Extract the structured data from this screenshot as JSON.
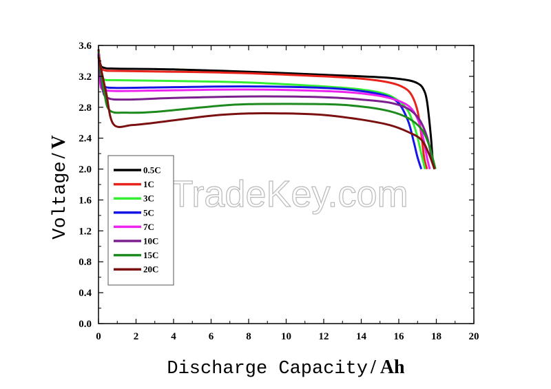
{
  "chart_data": {
    "type": "line",
    "xlabel": "Discharge Capacity",
    "xunit": "Ah",
    "ylabel": "Voltage",
    "yunit": "V",
    "xlim": [
      0,
      20
    ],
    "ylim": [
      0,
      3.6
    ],
    "xticks": [
      "0",
      "2",
      "4",
      "6",
      "8",
      "10",
      "12",
      "14",
      "16",
      "18",
      "20"
    ],
    "yticks": [
      "0.0",
      "0.4",
      "0.8",
      "1.2",
      "1.6",
      "2.0",
      "2.4",
      "2.8",
      "3.2",
      "3.6"
    ],
    "grid": false,
    "legend_position": "left",
    "watermark": "TradeKey.com",
    "series": [
      {
        "name": "0.5C",
        "color": "#000000",
        "points": [
          [
            0,
            3.55
          ],
          [
            0.1,
            3.36
          ],
          [
            0.3,
            3.31
          ],
          [
            1,
            3.3
          ],
          [
            4,
            3.29
          ],
          [
            8,
            3.26
          ],
          [
            12,
            3.22
          ],
          [
            14,
            3.2
          ],
          [
            15.5,
            3.18
          ],
          [
            16.5,
            3.15
          ],
          [
            17,
            3.11
          ],
          [
            17.3,
            3.04
          ],
          [
            17.5,
            2.88
          ],
          [
            17.7,
            2.45
          ],
          [
            17.8,
            2.15
          ],
          [
            17.9,
            2.0
          ]
        ]
      },
      {
        "name": "1C",
        "color": "#e8231b",
        "points": [
          [
            0,
            3.54
          ],
          [
            0.1,
            3.34
          ],
          [
            0.3,
            3.28
          ],
          [
            1,
            3.27
          ],
          [
            4,
            3.26
          ],
          [
            8,
            3.24
          ],
          [
            12,
            3.2
          ],
          [
            14,
            3.17
          ],
          [
            15.5,
            3.12
          ],
          [
            16.3,
            3.05
          ],
          [
            16.7,
            2.95
          ],
          [
            17,
            2.75
          ],
          [
            17.2,
            2.45
          ],
          [
            17.35,
            2.15
          ],
          [
            17.5,
            2.0
          ]
        ]
      },
      {
        "name": "3C",
        "color": "#33ee33",
        "points": [
          [
            0,
            3.52
          ],
          [
            0.1,
            3.25
          ],
          [
            0.3,
            3.16
          ],
          [
            1,
            3.15
          ],
          [
            4,
            3.14
          ],
          [
            8,
            3.12
          ],
          [
            12,
            3.07
          ],
          [
            14,
            3.03
          ],
          [
            15.3,
            2.97
          ],
          [
            16,
            2.88
          ],
          [
            16.5,
            2.75
          ],
          [
            16.9,
            2.5
          ],
          [
            17.2,
            2.2
          ],
          [
            17.4,
            2.0
          ]
        ]
      },
      {
        "name": "5C",
        "color": "#1515e6",
        "points": [
          [
            0,
            3.5
          ],
          [
            0.1,
            3.15
          ],
          [
            0.3,
            3.07
          ],
          [
            1,
            3.05
          ],
          [
            4,
            3.06
          ],
          [
            8,
            3.07
          ],
          [
            12,
            3.05
          ],
          [
            14,
            3.01
          ],
          [
            15.3,
            2.95
          ],
          [
            16,
            2.85
          ],
          [
            16.5,
            2.62
          ],
          [
            16.8,
            2.35
          ],
          [
            17,
            2.15
          ],
          [
            17.2,
            2.0
          ]
        ]
      },
      {
        "name": "7C",
        "color": "#ee22ee",
        "points": [
          [
            0,
            3.5
          ],
          [
            0.1,
            3.1
          ],
          [
            0.3,
            3.03
          ],
          [
            1,
            3.01
          ],
          [
            4,
            3.02
          ],
          [
            8,
            3.03
          ],
          [
            12,
            3.01
          ],
          [
            14,
            2.98
          ],
          [
            15.5,
            2.92
          ],
          [
            16.5,
            2.82
          ],
          [
            17,
            2.65
          ],
          [
            17.3,
            2.4
          ],
          [
            17.5,
            2.15
          ],
          [
            17.65,
            2.0
          ]
        ]
      },
      {
        "name": "10C",
        "color": "#7b1f8e",
        "points": [
          [
            0,
            3.48
          ],
          [
            0.2,
            3.05
          ],
          [
            0.5,
            2.92
          ],
          [
            1.5,
            2.9
          ],
          [
            4,
            2.92
          ],
          [
            8,
            2.94
          ],
          [
            12,
            2.93
          ],
          [
            14,
            2.9
          ],
          [
            15.5,
            2.86
          ],
          [
            16.5,
            2.78
          ],
          [
            17.1,
            2.64
          ],
          [
            17.5,
            2.42
          ],
          [
            17.75,
            2.15
          ],
          [
            17.9,
            2.0
          ]
        ]
      },
      {
        "name": "15C",
        "color": "#1d8a1d",
        "points": [
          [
            0,
            3.46
          ],
          [
            0.3,
            3.0
          ],
          [
            0.6,
            2.76
          ],
          [
            1.5,
            2.73
          ],
          [
            3,
            2.74
          ],
          [
            6,
            2.81
          ],
          [
            8,
            2.84
          ],
          [
            12,
            2.84
          ],
          [
            14,
            2.81
          ],
          [
            15.5,
            2.75
          ],
          [
            16.5,
            2.66
          ],
          [
            17.2,
            2.52
          ],
          [
            17.6,
            2.32
          ],
          [
            17.85,
            2.1
          ],
          [
            17.95,
            2.0
          ]
        ]
      },
      {
        "name": "20C",
        "color": "#7a1010",
        "points": [
          [
            0,
            3.45
          ],
          [
            0.4,
            3.0
          ],
          [
            0.8,
            2.58
          ],
          [
            1.8,
            2.57
          ],
          [
            3,
            2.6
          ],
          [
            6,
            2.69
          ],
          [
            8,
            2.72
          ],
          [
            10,
            2.72
          ],
          [
            12,
            2.7
          ],
          [
            14,
            2.64
          ],
          [
            15.5,
            2.57
          ],
          [
            16.5,
            2.48
          ],
          [
            17.2,
            2.38
          ],
          [
            17.6,
            2.2
          ],
          [
            17.9,
            2.0
          ]
        ]
      }
    ]
  }
}
